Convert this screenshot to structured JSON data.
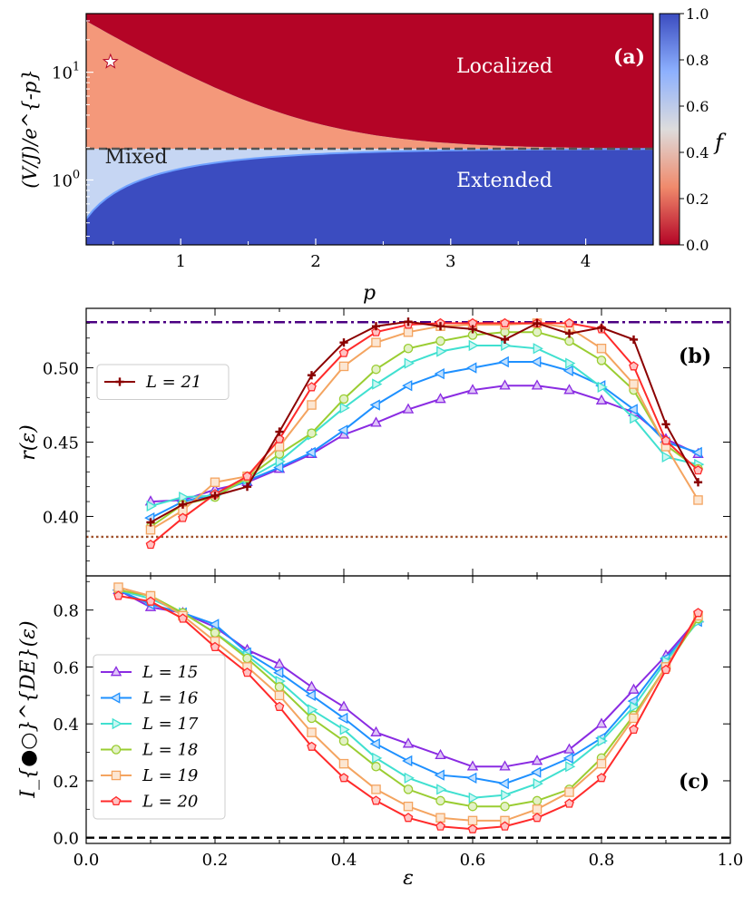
{
  "chart_data": [
    {
      "type": "heatmap",
      "panel_label": "(a)",
      "xlabel": "p",
      "ylabel": "(V/J)/e^{-p}",
      "xlim": [
        0.3,
        4.5
      ],
      "ylim": [
        0.25,
        35
      ],
      "yscale": "log",
      "xticks": [
        "1",
        "2",
        "3",
        "4"
      ],
      "yticks": [
        "10^1",
        "10^0"
      ],
      "colorbar": {
        "label": "f",
        "min": 0.0,
        "max": 1.0,
        "ticks": [
          "0.0",
          "0.2",
          "0.4",
          "0.6",
          "0.8",
          "1.0"
        ]
      },
      "annotations": [
        "Localized",
        "Mixed",
        "Extended"
      ],
      "dashed_line_y": 1.95,
      "star": {
        "p": 0.48,
        "y": 12.5
      },
      "colors": {
        "localized": "#b40426",
        "extended": "#3b4cc0",
        "mixed_upper": "#f4987a",
        "mixed_lower": "#c6d6f3"
      }
    },
    {
      "type": "line",
      "panel_label": "(b)",
      "ylabel": "r(ε)",
      "xlim": [
        0.0,
        1.0
      ],
      "ylim": [
        0.36,
        0.54
      ],
      "yticks": [
        "0.40",
        "0.45",
        "0.50"
      ],
      "legend": [
        "L = 21"
      ],
      "legend_position": "upper-left",
      "reference_lines": [
        {
          "value": 0.5307,
          "style": "dashdot",
          "color": "#4b0082"
        },
        {
          "value": 0.3863,
          "style": "dotted",
          "color": "#a0522d"
        }
      ],
      "x": [
        0.1,
        0.15,
        0.2,
        0.25,
        0.3,
        0.35,
        0.4,
        0.45,
        0.5,
        0.55,
        0.6,
        0.65,
        0.7,
        0.75,
        0.8,
        0.85,
        0.9,
        0.95
      ],
      "series": [
        {
          "name": "L = 15",
          "color": "#8a2be2",
          "marker": "triangle-up",
          "values": [
            0.41,
            0.411,
            0.418,
            0.423,
            0.432,
            0.442,
            0.455,
            0.463,
            0.472,
            0.479,
            0.485,
            0.488,
            0.488,
            0.485,
            0.478,
            0.47,
            0.452,
            0.442
          ]
        },
        {
          "name": "L = 16",
          "color": "#1e90ff",
          "marker": "triangle-left",
          "values": [
            0.399,
            0.41,
            0.415,
            0.424,
            0.433,
            0.443,
            0.458,
            0.475,
            0.488,
            0.496,
            0.5,
            0.504,
            0.504,
            0.498,
            0.488,
            0.472,
            0.45,
            0.443
          ]
        },
        {
          "name": "L = 17",
          "color": "#40e0d0",
          "marker": "triangle-right",
          "values": [
            0.407,
            0.413,
            0.414,
            0.425,
            0.437,
            0.455,
            0.473,
            0.489,
            0.503,
            0.511,
            0.515,
            0.515,
            0.513,
            0.503,
            0.487,
            0.466,
            0.44,
            0.435
          ]
        },
        {
          "name": "L = 18",
          "color": "#9acd32",
          "marker": "circle",
          "values": [
            0.393,
            0.408,
            0.413,
            0.426,
            0.442,
            0.456,
            0.479,
            0.499,
            0.513,
            0.518,
            0.522,
            0.524,
            0.524,
            0.518,
            0.505,
            0.485,
            0.448,
            0.432
          ]
        },
        {
          "name": "L = 19",
          "color": "#f4a460",
          "marker": "square",
          "values": [
            0.391,
            0.404,
            0.423,
            0.427,
            0.447,
            0.475,
            0.501,
            0.517,
            0.524,
            0.528,
            0.529,
            0.529,
            0.53,
            0.527,
            0.513,
            0.489,
            0.447,
            0.411
          ]
        },
        {
          "name": "L = 20",
          "color": "#ff2a2a",
          "marker": "pentagon",
          "values": [
            0.381,
            0.399,
            0.415,
            0.427,
            0.452,
            0.487,
            0.51,
            0.524,
            0.529,
            0.53,
            0.53,
            0.53,
            0.53,
            0.53,
            0.526,
            0.501,
            0.451,
            0.431
          ]
        },
        {
          "name": "L = 21",
          "color": "#8b0000",
          "marker": "plus",
          "values": [
            0.396,
            0.408,
            0.414,
            0.42,
            0.457,
            0.495,
            0.517,
            0.528,
            0.531,
            0.528,
            0.526,
            0.519,
            0.53,
            0.523,
            0.527,
            0.519,
            0.462,
            0.423
          ]
        }
      ]
    },
    {
      "type": "line",
      "panel_label": "(c)",
      "xlabel": "ε",
      "ylabel": "I_{●○}^{DE}(ε)",
      "xlim": [
        0.0,
        1.0
      ],
      "ylim": [
        -0.02,
        0.92
      ],
      "xticks": [
        "0.0",
        "0.2",
        "0.4",
        "0.6",
        "0.8",
        "1.0"
      ],
      "yticks": [
        "0.0",
        "0.2",
        "0.4",
        "0.6",
        "0.8"
      ],
      "legend": [
        "L = 15",
        "L = 16",
        "L = 17",
        "L = 18",
        "L = 19",
        "L = 20"
      ],
      "legend_position": "lower-left",
      "reference_lines": [
        {
          "value": 0.0,
          "style": "dashed",
          "color": "#000000"
        }
      ],
      "x": [
        0.05,
        0.1,
        0.15,
        0.2,
        0.25,
        0.3,
        0.35,
        0.4,
        0.45,
        0.5,
        0.55,
        0.6,
        0.65,
        0.7,
        0.75,
        0.8,
        0.85,
        0.9,
        0.95
      ],
      "series": [
        {
          "name": "L = 15",
          "color": "#8a2be2",
          "marker": "triangle-up",
          "values": [
            0.87,
            0.81,
            0.79,
            0.74,
            0.66,
            0.61,
            0.53,
            0.46,
            0.37,
            0.33,
            0.29,
            0.25,
            0.25,
            0.27,
            0.31,
            0.4,
            0.52,
            0.64,
            0.77
          ]
        },
        {
          "name": "L = 16",
          "color": "#1e90ff",
          "marker": "triangle-left",
          "values": [
            0.87,
            0.82,
            0.79,
            0.75,
            0.65,
            0.58,
            0.5,
            0.42,
            0.33,
            0.27,
            0.22,
            0.21,
            0.19,
            0.23,
            0.28,
            0.35,
            0.48,
            0.63,
            0.76
          ]
        },
        {
          "name": "L = 17",
          "color": "#40e0d0",
          "marker": "triangle-right",
          "values": [
            0.87,
            0.84,
            0.79,
            0.72,
            0.64,
            0.55,
            0.45,
            0.38,
            0.28,
            0.21,
            0.17,
            0.14,
            0.15,
            0.19,
            0.25,
            0.34,
            0.46,
            0.62,
            0.76
          ]
        },
        {
          "name": "L = 18",
          "color": "#9acd32",
          "marker": "circle",
          "values": [
            0.87,
            0.85,
            0.79,
            0.72,
            0.63,
            0.53,
            0.42,
            0.34,
            0.25,
            0.17,
            0.13,
            0.11,
            0.11,
            0.13,
            0.17,
            0.28,
            0.43,
            0.6,
            0.77
          ]
        },
        {
          "name": "L = 19",
          "color": "#f4a460",
          "marker": "square",
          "values": [
            0.88,
            0.85,
            0.78,
            0.69,
            0.6,
            0.5,
            0.37,
            0.26,
            0.17,
            0.11,
            0.07,
            0.06,
            0.06,
            0.1,
            0.16,
            0.26,
            0.42,
            0.6,
            0.78
          ]
        },
        {
          "name": "L = 20",
          "color": "#ff2a2a",
          "marker": "pentagon",
          "values": [
            0.85,
            0.83,
            0.77,
            0.67,
            0.58,
            0.46,
            0.32,
            0.21,
            0.13,
            0.07,
            0.04,
            0.03,
            0.04,
            0.07,
            0.12,
            0.21,
            0.38,
            0.59,
            0.79
          ]
        }
      ]
    }
  ]
}
